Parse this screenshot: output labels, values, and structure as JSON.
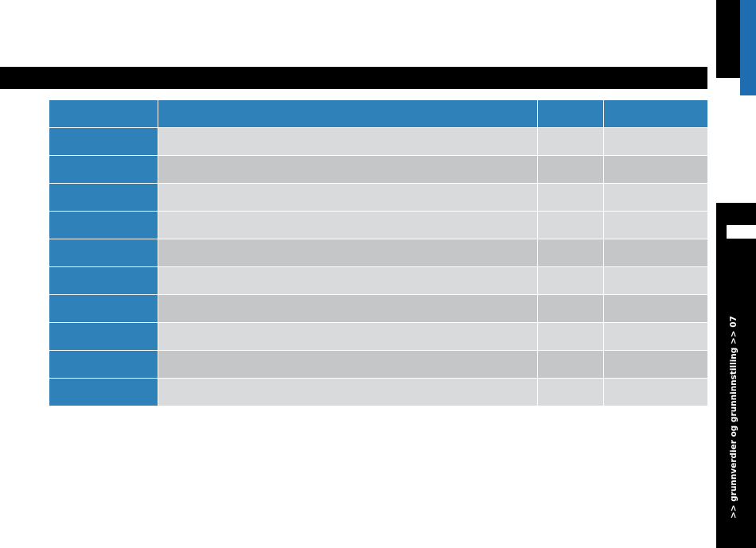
{
  "sidebar": {
    "section": ">> grunnverdier og grunninnstilling >> 07"
  }
}
